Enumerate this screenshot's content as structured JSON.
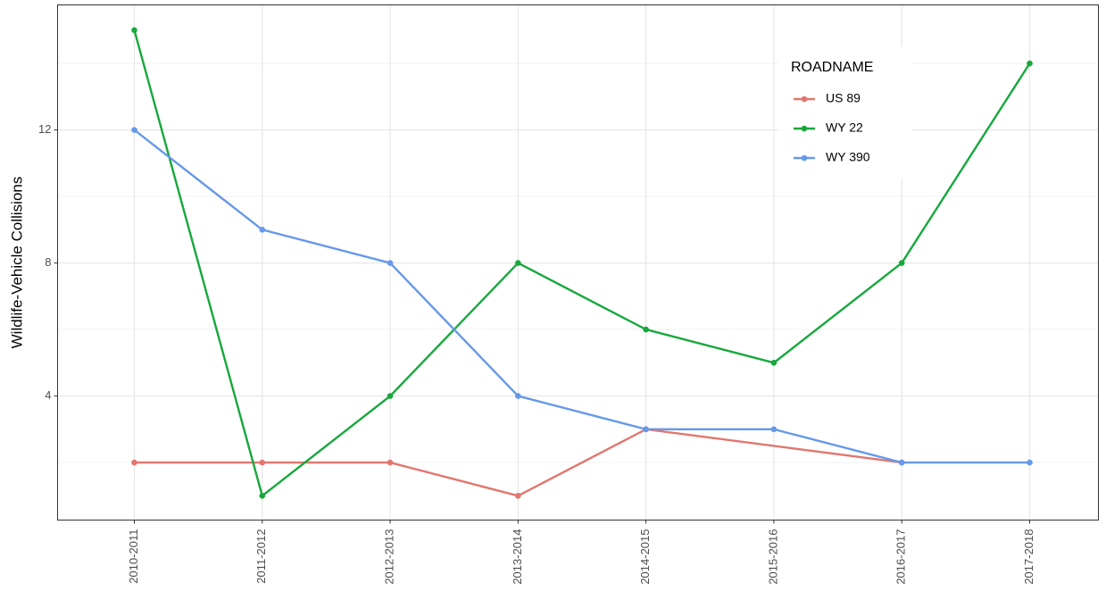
{
  "chart_data": {
    "type": "line",
    "y_label": "Wildlife-Vehicle Collisions",
    "categories": [
      "2010-2011",
      "2011-2012",
      "2012-2013",
      "2013-2014",
      "2014-2015",
      "2015-2016",
      "2016-2017",
      "2017-2018"
    ],
    "series": [
      {
        "name": "US 89",
        "color": "#E2766F",
        "values": [
          2,
          2,
          2,
          1,
          3,
          null,
          2,
          null
        ]
      },
      {
        "name": "WY 22",
        "color": "#17A83C",
        "values": [
          15,
          1,
          4,
          8,
          6,
          5,
          8,
          14
        ]
      },
      {
        "name": "WY 390",
        "color": "#6699E8",
        "values": [
          12,
          9,
          8,
          4,
          3,
          3,
          2,
          2
        ]
      }
    ],
    "legend_title": "ROADNAME",
    "legend_position": "top-right",
    "connect_gaps": true,
    "ylim": [
      0.27,
      15.76
    ],
    "yticks": [
      4,
      8,
      12
    ],
    "y_minor_grid": [
      2,
      6,
      10,
      14
    ],
    "grid": true
  }
}
